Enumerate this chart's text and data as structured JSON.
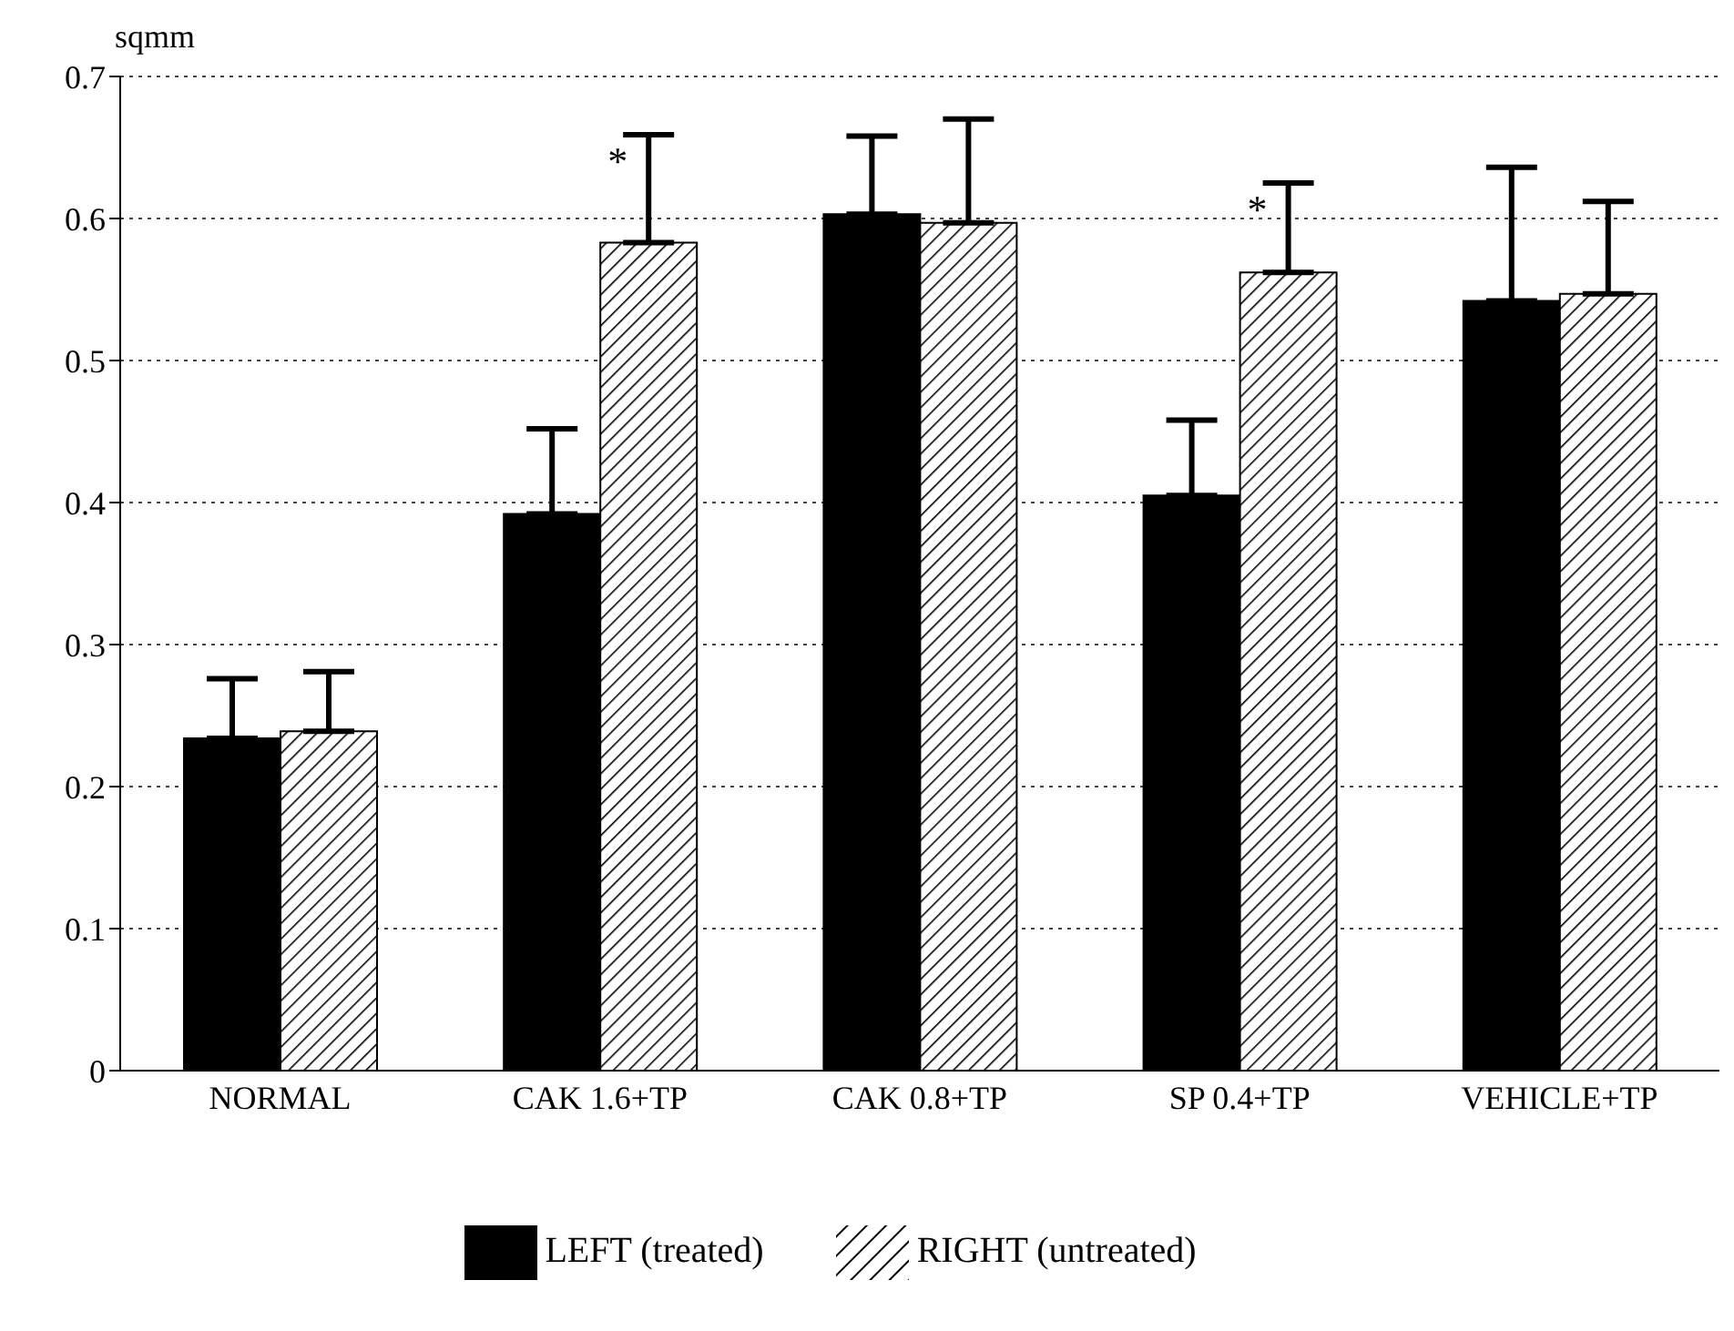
{
  "chart_data": {
    "type": "bar",
    "ylabel": "sqmm",
    "categories": [
      "NORMAL",
      "CAK 1.6+TP",
      "CAK 0.8+TP",
      "SP 0.4+TP",
      "VEHICLE+TP"
    ],
    "series": [
      {
        "name": "LEFT (treated)",
        "color": "#000000",
        "values": [
          0.234,
          0.392,
          0.603,
          0.405,
          0.542
        ],
        "errors": [
          [
            0.234,
            0.276
          ],
          [
            0.392,
            0.452
          ],
          [
            0.603,
            0.658
          ],
          [
            0.405,
            0.458
          ],
          [
            0.542,
            0.636
          ]
        ]
      },
      {
        "name": "RIGHT (untreated)",
        "color": "#000000",
        "values": [
          0.239,
          0.583,
          0.597,
          0.562,
          0.547
        ],
        "errors": [
          [
            0.239,
            0.281
          ],
          [
            0.583,
            0.659
          ],
          [
            0.597,
            0.67
          ],
          [
            0.562,
            0.625
          ],
          [
            0.547,
            0.612
          ]
        ],
        "value_labels": [
          null,
          "*",
          null,
          "*",
          null
        ]
      }
    ],
    "ylim": [
      0,
      0.7
    ],
    "yticks": [
      0,
      0.1,
      0.2,
      0.3,
      0.4,
      0.5,
      0.6,
      0.7
    ],
    "grid": "y",
    "legend": "bottom"
  }
}
